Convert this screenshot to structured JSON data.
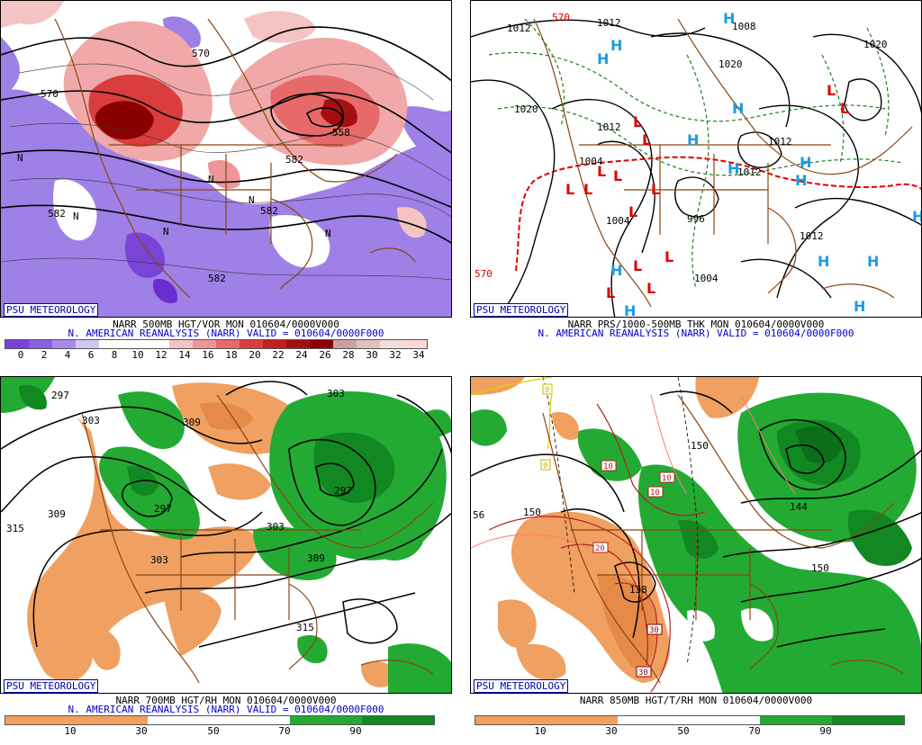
{
  "badge": "PSU METEOROLOGY",
  "panels": [
    {
      "line1": "NARR 500MB HGT/VOR MON 010604/0000V000",
      "line2": "N. AMERICAN REANALYSIS (NARR) VALID = 010604/0000F000",
      "colors": [
        "#7b3fe0",
        "#8c5ee0",
        "#a98ae8",
        "#d4c6f2",
        "#ffffff",
        "#ffffff",
        "#ffffff",
        "#f4c3c3",
        "#ee9696",
        "#e66a6a",
        "#d93d3d",
        "#c41e1e",
        "#a50f0f",
        "#8a0000",
        "#c9a0a0",
        "#e2c0c0",
        "#f2dede",
        "#ffd7d7"
      ],
      "ticks": [
        "0",
        "2",
        "4",
        "6",
        "8",
        "10",
        "12",
        "14",
        "16",
        "18",
        "20",
        "22",
        "24",
        "26",
        "28",
        "30",
        "32",
        "34"
      ],
      "labels": [
        "570",
        "582",
        "582",
        "570",
        "582",
        "558",
        "582",
        "N",
        "N",
        "N",
        "N",
        "N",
        "N"
      ]
    },
    {
      "line1": "NARR PRS/1000-500MB THK MON 010604/0000V000",
      "line2": "N. AMERICAN REANALYSIS (NARR) VALID = 010604/0000F000",
      "labels": [
        "1012",
        "1012",
        "1020",
        "1020",
        "1008",
        "1012",
        "1004",
        "1004",
        "996",
        "1004",
        "1012",
        "1012",
        "1012",
        "570",
        "570",
        "1020"
      ],
      "highs": "H",
      "lows": "L"
    },
    {
      "line1": "NARR 700MB HGT/RH MON 010604/0000V000",
      "line2": "N. AMERICAN REANALYSIS (NARR) VALID = 010604/0000F000",
      "ticks": [
        "10",
        "30",
        "50",
        "70",
        "90"
      ],
      "labels": [
        "297",
        "303",
        "309",
        "309",
        "303",
        "315",
        "297",
        "303",
        "309",
        "303",
        "315",
        "297"
      ]
    },
    {
      "line1": "NARR 850MB HGT/T/RH MON 010604/0000V000",
      "ticks": [
        "10",
        "30",
        "50",
        "70",
        "90"
      ],
      "labels": [
        "150",
        "150",
        "138",
        "144",
        "150",
        "56",
        "10",
        "10",
        "10",
        "20",
        "30",
        "30",
        "0",
        "0"
      ]
    }
  ]
}
